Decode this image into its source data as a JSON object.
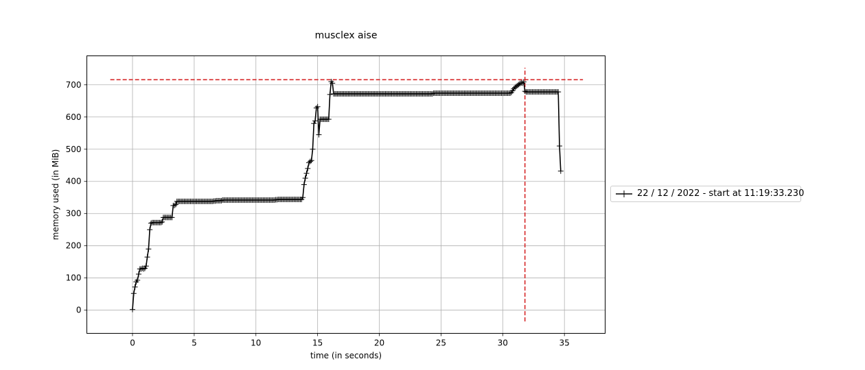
{
  "chart_data": {
    "type": "line",
    "title": "musclex aise",
    "xlabel": "time (in seconds)",
    "ylabel": "memory used (in MiB)",
    "xlim": [
      -3.7,
      38.3
    ],
    "ylim": [
      -72,
      790
    ],
    "xticks": [
      0,
      5,
      10,
      15,
      20,
      25,
      30,
      35
    ],
    "yticks": [
      0,
      100,
      200,
      300,
      400,
      500,
      600,
      700
    ],
    "grid": true,
    "legend_position": "right",
    "legend_entries": [
      "22 / 12 / 2022 - start at 11:19:33.230"
    ],
    "series": [
      {
        "name": "22 / 12 / 2022 - start at 11:19:33.230",
        "color": "#000000",
        "marker": "plus",
        "x": [
          0.0,
          0.1,
          0.2,
          0.3,
          0.4,
          0.5,
          0.6,
          0.7,
          0.8,
          0.9,
          1.0,
          1.1,
          1.2,
          1.3,
          1.4,
          1.5,
          1.6,
          1.7,
          1.8,
          1.9,
          2.0,
          2.1,
          2.2,
          2.3,
          2.4,
          2.5,
          2.6,
          2.7,
          2.8,
          2.9,
          3.0,
          3.1,
          3.2,
          3.3,
          3.4,
          3.5,
          3.6,
          3.7,
          3.8,
          3.9,
          4.0,
          4.1,
          4.2,
          4.3,
          4.4,
          4.5,
          4.6,
          4.7,
          4.8,
          4.9,
          5.0,
          5.1,
          5.2,
          5.3,
          5.4,
          5.5,
          5.6,
          5.7,
          5.8,
          5.9,
          6.0,
          6.1,
          6.2,
          6.3,
          6.4,
          6.5,
          6.6,
          6.7,
          6.8,
          6.9,
          7.0,
          7.1,
          7.2,
          7.3,
          7.4,
          7.5,
          7.6,
          7.7,
          7.8,
          7.9,
          8.0,
          8.1,
          8.2,
          8.3,
          8.4,
          8.5,
          8.6,
          8.7,
          8.8,
          8.9,
          9.0,
          9.1,
          9.2,
          9.3,
          9.4,
          9.5,
          9.6,
          9.7,
          9.8,
          9.9,
          10.0,
          10.1,
          10.2,
          10.3,
          10.4,
          10.5,
          10.6,
          10.7,
          10.8,
          10.9,
          11.0,
          11.1,
          11.2,
          11.3,
          11.4,
          11.5,
          11.6,
          11.7,
          11.8,
          11.9,
          12.0,
          12.1,
          12.2,
          12.3,
          12.4,
          12.5,
          12.6,
          12.7,
          12.8,
          12.9,
          13.0,
          13.1,
          13.2,
          13.3,
          13.4,
          13.5,
          13.6,
          13.7,
          13.8,
          13.9,
          14.0,
          14.1,
          14.2,
          14.3,
          14.4,
          14.5,
          14.6,
          14.7,
          14.8,
          14.9,
          15.0,
          15.1,
          15.2,
          15.3,
          15.4,
          15.5,
          15.6,
          15.7,
          15.8,
          15.9,
          16.0,
          16.1,
          16.2,
          16.3,
          16.4,
          16.5,
          16.6,
          16.7,
          16.8,
          16.9,
          17.0,
          17.1,
          17.2,
          17.3,
          17.4,
          17.5,
          17.6,
          17.7,
          17.8,
          17.9,
          18.0,
          18.1,
          18.2,
          18.3,
          18.4,
          18.5,
          18.6,
          18.7,
          18.8,
          18.9,
          19.0,
          19.1,
          19.2,
          19.3,
          19.4,
          19.5,
          19.6,
          19.7,
          19.8,
          19.9,
          20.0,
          20.1,
          20.2,
          20.3,
          20.4,
          20.5,
          20.6,
          20.7,
          20.8,
          20.9,
          21.0,
          21.1,
          21.2,
          21.3,
          21.4,
          21.5,
          21.6,
          21.7,
          21.8,
          21.9,
          22.0,
          22.1,
          22.2,
          22.3,
          22.4,
          22.5,
          22.6,
          22.7,
          22.8,
          22.9,
          23.0,
          23.1,
          23.2,
          23.3,
          23.4,
          23.5,
          23.6,
          23.7,
          23.8,
          23.9,
          24.0,
          24.1,
          24.2,
          24.3,
          24.4,
          24.5,
          24.6,
          24.7,
          24.8,
          24.9,
          25.0,
          25.1,
          25.2,
          25.3,
          25.4,
          25.5,
          25.6,
          25.7,
          25.8,
          25.9,
          26.0,
          26.1,
          26.2,
          26.3,
          26.4,
          26.5,
          26.6,
          26.7,
          26.8,
          26.9,
          27.0,
          27.1,
          27.2,
          27.3,
          27.4,
          27.5,
          27.6,
          27.7,
          27.8,
          27.9,
          28.0,
          28.1,
          28.2,
          28.3,
          28.4,
          28.5,
          28.6,
          28.7,
          28.8,
          28.9,
          29.0,
          29.1,
          29.2,
          29.3,
          29.4,
          29.5,
          29.6,
          29.7,
          29.8,
          29.9,
          30.0,
          30.1,
          30.2,
          30.3,
          30.4,
          30.5,
          30.6,
          30.7,
          30.8,
          30.9,
          31.0,
          31.1,
          31.2,
          31.3,
          31.4,
          31.5,
          31.6,
          31.7,
          31.8,
          31.9,
          32.0,
          32.1,
          32.2,
          32.3,
          32.4,
          32.5,
          32.6,
          32.7,
          32.8,
          32.9,
          33.0,
          33.1,
          33.2,
          33.3,
          33.4,
          33.5,
          33.6,
          33.7,
          33.8,
          33.9,
          34.0,
          34.1,
          34.2,
          34.3,
          34.4,
          34.5,
          34.6,
          34.7
        ],
        "y": [
          2.0,
          52.0,
          72.0,
          88.0,
          93.0,
          112.0,
          128.0,
          128.0,
          130.0,
          128.0,
          130.0,
          137.0,
          165.0,
          190.0,
          250.0,
          270.0,
          272.0,
          272.0,
          272.0,
          272.0,
          272.0,
          272.0,
          272.0,
          272.0,
          274.0,
          288.0,
          288.0,
          288.0,
          288.0,
          288.0,
          288.0,
          288.0,
          288.0,
          325.0,
          325.0,
          328.0,
          338.0,
          338.0,
          338.0,
          338.0,
          338.0,
          338.0,
          338.0,
          338.0,
          338.0,
          338.0,
          338.0,
          338.0,
          338.0,
          338.0,
          338.0,
          338.0,
          338.0,
          338.0,
          338.0,
          338.0,
          338.0,
          338.0,
          338.0,
          338.0,
          338.0,
          338.0,
          338.0,
          338.0,
          338.0,
          338.0,
          339.0,
          339.0,
          340.0,
          340.0,
          340.0,
          340.0,
          340.0,
          342.0,
          342.0,
          342.0,
          342.0,
          342.0,
          342.0,
          342.0,
          342.0,
          342.0,
          342.0,
          342.0,
          342.0,
          342.0,
          342.0,
          342.0,
          342.0,
          342.0,
          342.0,
          342.0,
          342.0,
          342.0,
          342.0,
          342.0,
          342.0,
          342.0,
          342.0,
          342.0,
          342.0,
          342.0,
          342.0,
          342.0,
          342.0,
          342.0,
          342.0,
          342.0,
          342.0,
          342.0,
          342.0,
          342.0,
          342.0,
          342.0,
          342.0,
          342.0,
          343.0,
          343.0,
          344.0,
          344.0,
          344.0,
          344.0,
          344.0,
          344.0,
          344.0,
          344.0,
          344.0,
          344.0,
          344.0,
          344.0,
          344.0,
          344.0,
          344.0,
          344.0,
          344.0,
          344.0,
          344.0,
          344.0,
          350.0,
          390.0,
          410.0,
          425.0,
          440.0,
          458.0,
          462.0,
          465.0,
          500.0,
          580.0,
          588.0,
          628.0,
          632.0,
          545.0,
          593.0,
          593.0,
          593.0,
          593.0,
          593.0,
          593.0,
          593.0,
          593.0,
          670.0,
          710.0,
          705.0,
          672.0,
          672.0,
          672.0,
          672.0,
          672.0,
          672.0,
          672.0,
          672.0,
          672.0,
          672.0,
          672.0,
          672.0,
          672.0,
          672.0,
          672.0,
          672.0,
          672.0,
          672.0,
          672.0,
          672.0,
          672.0,
          672.0,
          672.0,
          672.0,
          672.0,
          672.0,
          672.0,
          672.0,
          672.0,
          672.0,
          672.0,
          672.0,
          672.0,
          672.0,
          672.0,
          672.0,
          672.0,
          672.0,
          672.0,
          672.0,
          672.0,
          672.0,
          672.0,
          672.0,
          672.0,
          672.0,
          672.0,
          672.0,
          672.0,
          672.0,
          672.0,
          672.0,
          672.0,
          672.0,
          672.0,
          672.0,
          672.0,
          672.0,
          672.0,
          672.0,
          672.0,
          672.0,
          672.0,
          672.0,
          672.0,
          672.0,
          672.0,
          672.0,
          672.0,
          672.0,
          672.0,
          672.0,
          672.0,
          672.0,
          672.0,
          672.0,
          672.0,
          672.0,
          672.0,
          672.0,
          672.0,
          674.0,
          674.0,
          674.0,
          674.0,
          674.0,
          674.0,
          674.0,
          674.0,
          674.0,
          674.0,
          674.0,
          674.0,
          674.0,
          674.0,
          674.0,
          674.0,
          674.0,
          674.0,
          674.0,
          674.0,
          674.0,
          674.0,
          674.0,
          674.0,
          674.0,
          674.0,
          674.0,
          674.0,
          674.0,
          674.0,
          674.0,
          674.0,
          674.0,
          674.0,
          674.0,
          674.0,
          674.0,
          674.0,
          674.0,
          674.0,
          674.0,
          674.0,
          674.0,
          674.0,
          674.0,
          674.0,
          674.0,
          674.0,
          674.0,
          674.0,
          674.0,
          674.0,
          674.0,
          674.0,
          674.0,
          674.0,
          674.0,
          674.0,
          674.0,
          674.0,
          674.0,
          674.0,
          674.0,
          676.0,
          682.0,
          688.0,
          692.0,
          695.0,
          698.0,
          701.0,
          704.0,
          706.0,
          705.0,
          709.0,
          680.0,
          678.0,
          678.0,
          678.0,
          678.0,
          678.0,
          678.0,
          678.0,
          678.0,
          678.0,
          678.0,
          678.0,
          678.0,
          678.0,
          678.0,
          678.0,
          678.0,
          678.0,
          678.0,
          678.0,
          678.0,
          678.0,
          678.0,
          678.0,
          678.0,
          678.0,
          678.0,
          678.0,
          510.0,
          432.0
        ]
      }
    ],
    "reference_lines": [
      {
        "orientation": "horizontal",
        "y": 716,
        "x_from": -1.8,
        "x_to": 36.5,
        "color": "#d62728",
        "style": "dashed"
      },
      {
        "orientation": "vertical",
        "x": 31.8,
        "y_from": -35,
        "y_to": 753,
        "color": "#d62728",
        "style": "dashed"
      }
    ]
  }
}
